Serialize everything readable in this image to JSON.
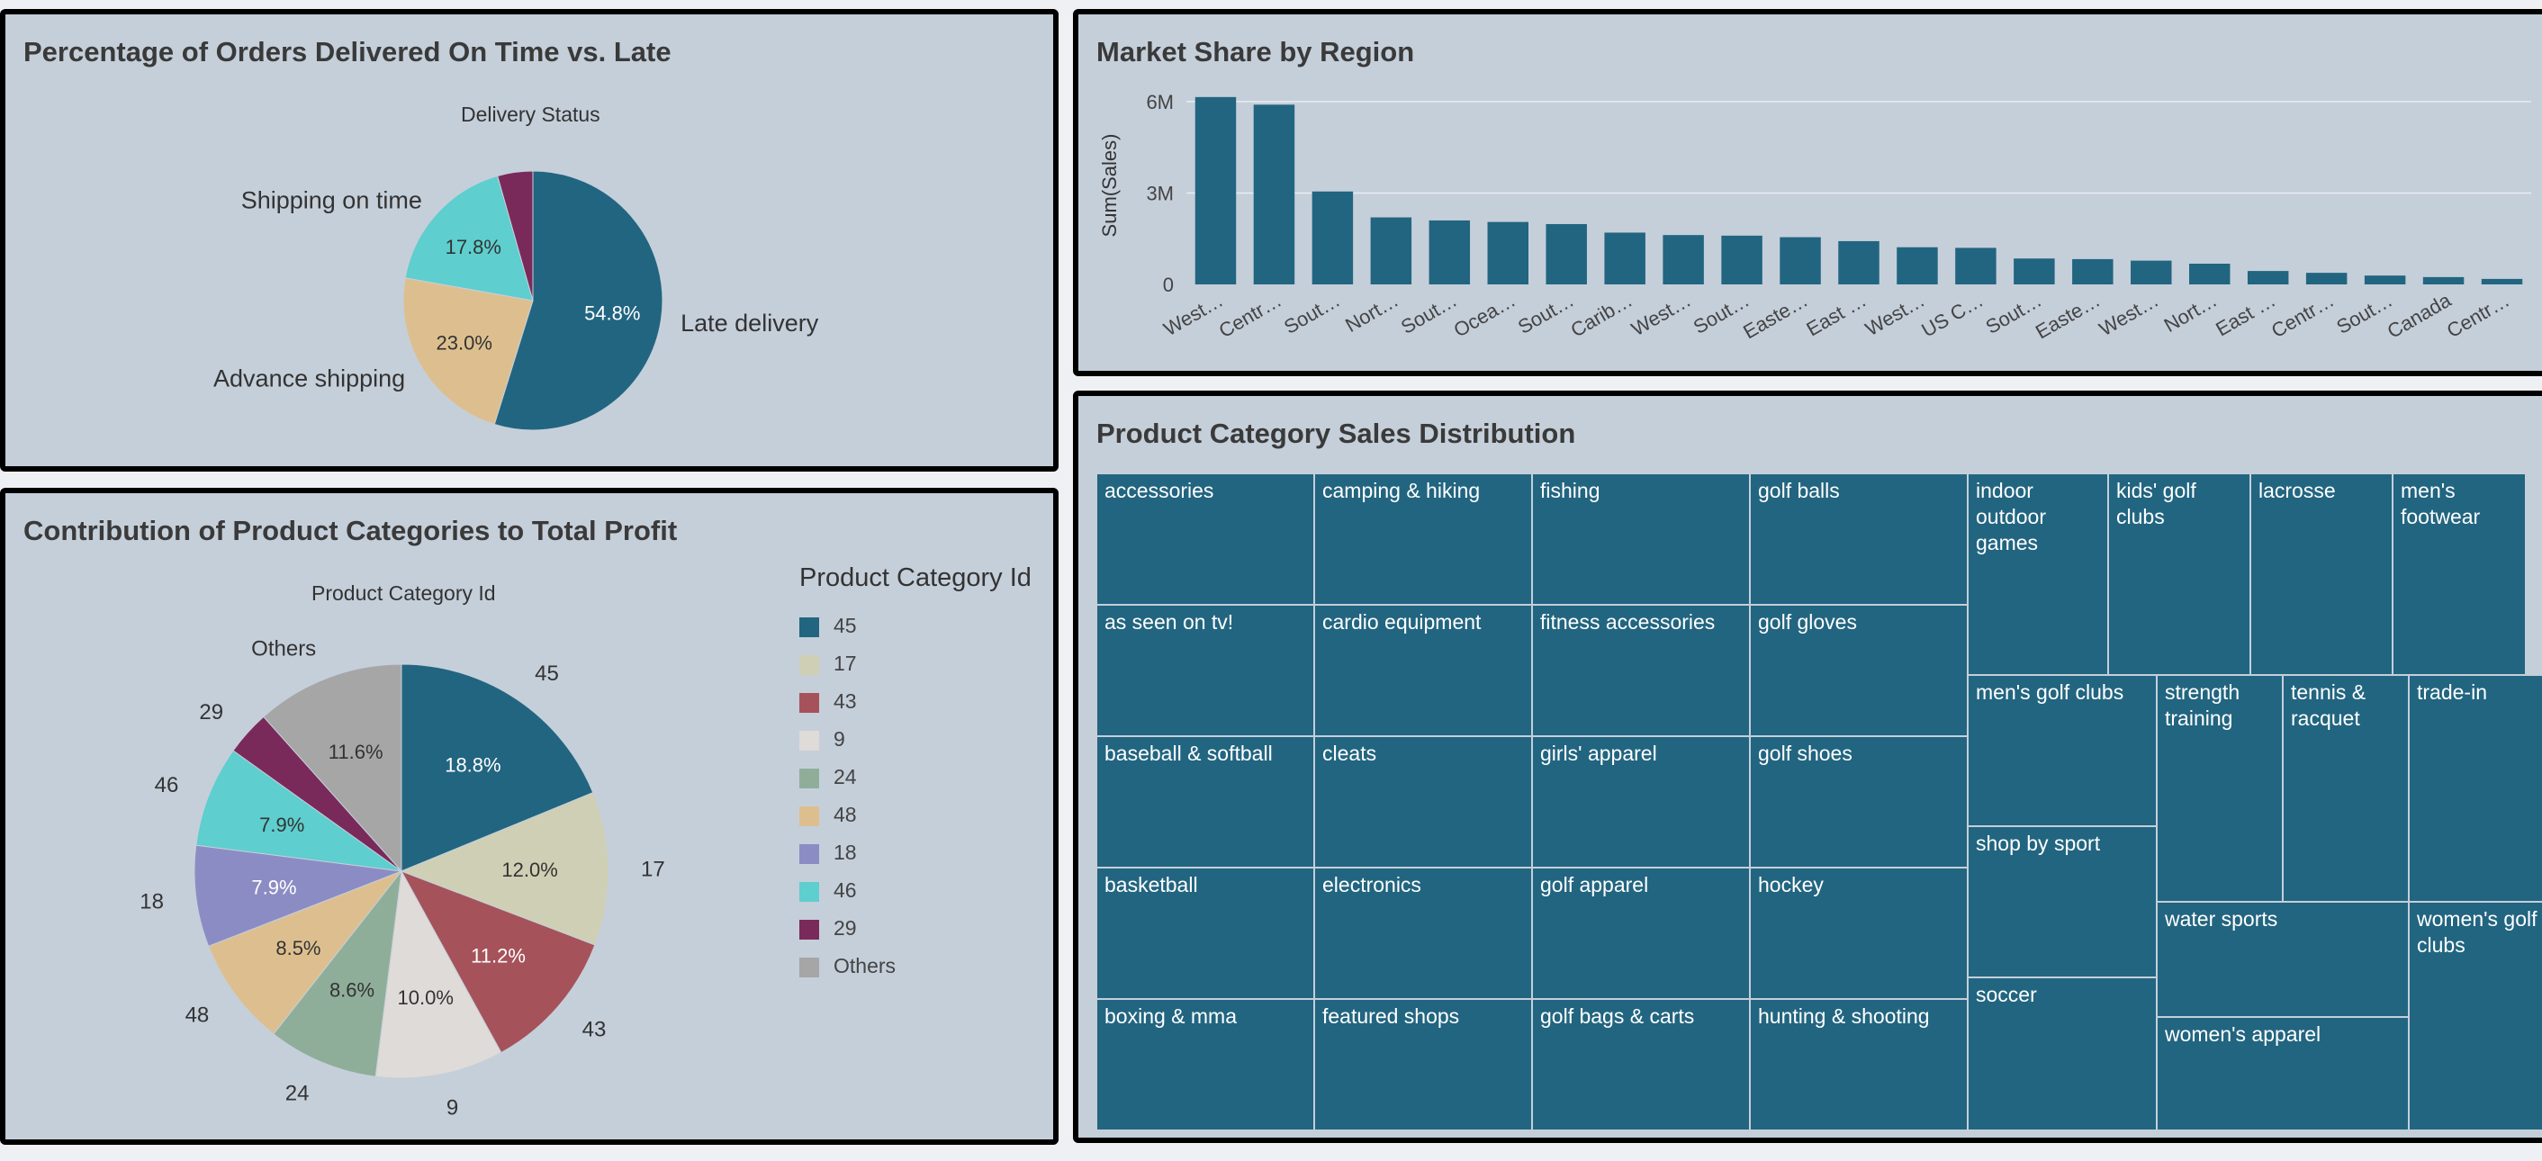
{
  "panels": {
    "delivery": {
      "title": "Percentage of Orders Delivered On Time vs. Late",
      "subtitle": "Delivery Status"
    },
    "market": {
      "title": "Market Share by Region"
    },
    "profit": {
      "title": "Contribution of Product Categories to Total Profit",
      "subtitle": "Product Category Id"
    },
    "treemap": {
      "title": "Product Category Sales Distribution"
    }
  },
  "chart_data": [
    {
      "type": "pie",
      "title": "Percentage of Orders Delivered On Time vs. Late",
      "subtitle": "Delivery Status",
      "slices": [
        {
          "label": "Late delivery",
          "value": 54.8,
          "pct_label": "54.8%",
          "color": "#226580"
        },
        {
          "label": "Advance shipping",
          "value": 23.0,
          "pct_label": "23.0%",
          "color": "#ddbf8f"
        },
        {
          "label": "Shipping on time",
          "value": 17.8,
          "pct_label": "17.8%",
          "color": "#5ecece"
        },
        {
          "label": "",
          "value": 4.4,
          "pct_label": "",
          "color": "#7a2a5a"
        }
      ]
    },
    {
      "type": "bar",
      "title": "Market Share by Region",
      "ylabel": "Sum(Sales)",
      "xlabel": "",
      "ylim": [
        0,
        6500000
      ],
      "yticks": [
        {
          "value": 0,
          "label": "0"
        },
        {
          "value": 3000000,
          "label": "3M"
        },
        {
          "value": 6000000,
          "label": "6M"
        }
      ],
      "grid": true,
      "color": "#226580",
      "categories": [
        "West…",
        "Centr…",
        "Sout…",
        "Nort…",
        "Sout…",
        "Ocea…",
        "Sout…",
        "Carib…",
        "West…",
        "Sout…",
        "Easte…",
        "East …",
        "West…",
        "US C…",
        "Sout…",
        "Easte…",
        "West…",
        "Nort…",
        "East …",
        "Centr…",
        "Sout…",
        "Canada",
        "Centr…"
      ],
      "values": [
        6150000,
        5900000,
        3050000,
        2200000,
        2100000,
        2050000,
        1980000,
        1700000,
        1620000,
        1600000,
        1550000,
        1420000,
        1220000,
        1200000,
        850000,
        830000,
        780000,
        680000,
        440000,
        380000,
        290000,
        240000,
        180000
      ]
    },
    {
      "type": "pie",
      "title": "Contribution of Product Categories to Total Profit",
      "subtitle": "Product Category Id",
      "legend_title": "Product Category Id",
      "legend_position": "right",
      "slices": [
        {
          "label": "45",
          "value": 18.8,
          "pct_label": "18.8%",
          "color": "#226580"
        },
        {
          "label": "17",
          "value": 12.0,
          "pct_label": "12.0%",
          "color": "#cfcfb5"
        },
        {
          "label": "43",
          "value": 11.2,
          "pct_label": "11.2%",
          "color": "#a6525a"
        },
        {
          "label": "9",
          "value": 10.0,
          "pct_label": "10.0%",
          "color": "#dedbd8"
        },
        {
          "label": "24",
          "value": 8.6,
          "pct_label": "8.6%",
          "color": "#8fae9a"
        },
        {
          "label": "48",
          "value": 8.5,
          "pct_label": "8.5%",
          "color": "#ddbf8f"
        },
        {
          "label": "18",
          "value": 7.9,
          "pct_label": "7.9%",
          "color": "#8c8cc5"
        },
        {
          "label": "46",
          "value": 7.9,
          "pct_label": "7.9%",
          "color": "#5ecece"
        },
        {
          "label": "29",
          "value": 3.5,
          "pct_label": "",
          "color": "#7a2a5a"
        },
        {
          "label": "Others",
          "value": 11.6,
          "pct_label": "11.6%",
          "color": "#a6a6a6"
        }
      ]
    },
    {
      "type": "treemap",
      "title": "Product Category Sales Distribution",
      "color": "#226580",
      "items": [
        {
          "label": "accessories"
        },
        {
          "label": "as seen on  tv!"
        },
        {
          "label": "baseball & softball"
        },
        {
          "label": "basketball"
        },
        {
          "label": "boxing & mma"
        },
        {
          "label": "camping & hiking"
        },
        {
          "label": "cardio equipment"
        },
        {
          "label": "cleats"
        },
        {
          "label": "electronics"
        },
        {
          "label": "featured shops"
        },
        {
          "label": "fishing"
        },
        {
          "label": "fitness accessories"
        },
        {
          "label": "girls' apparel"
        },
        {
          "label": "golf apparel"
        },
        {
          "label": "golf bags & carts"
        },
        {
          "label": "golf balls"
        },
        {
          "label": "golf gloves"
        },
        {
          "label": "golf shoes"
        },
        {
          "label": "hockey"
        },
        {
          "label": "hunting & shooting"
        },
        {
          "label": "indoor outdoor games"
        },
        {
          "label": "kids' golf clubs"
        },
        {
          "label": "lacrosse"
        },
        {
          "label": "men's footwear"
        },
        {
          "label": "men's golf clubs"
        },
        {
          "label": "shop by sport"
        },
        {
          "label": "soccer"
        },
        {
          "label": "strength training"
        },
        {
          "label": "tennis & racquet"
        },
        {
          "label": "trade-in"
        },
        {
          "label": "water sports"
        },
        {
          "label": "women's apparel"
        },
        {
          "label": "women's golf clubs"
        }
      ]
    }
  ]
}
